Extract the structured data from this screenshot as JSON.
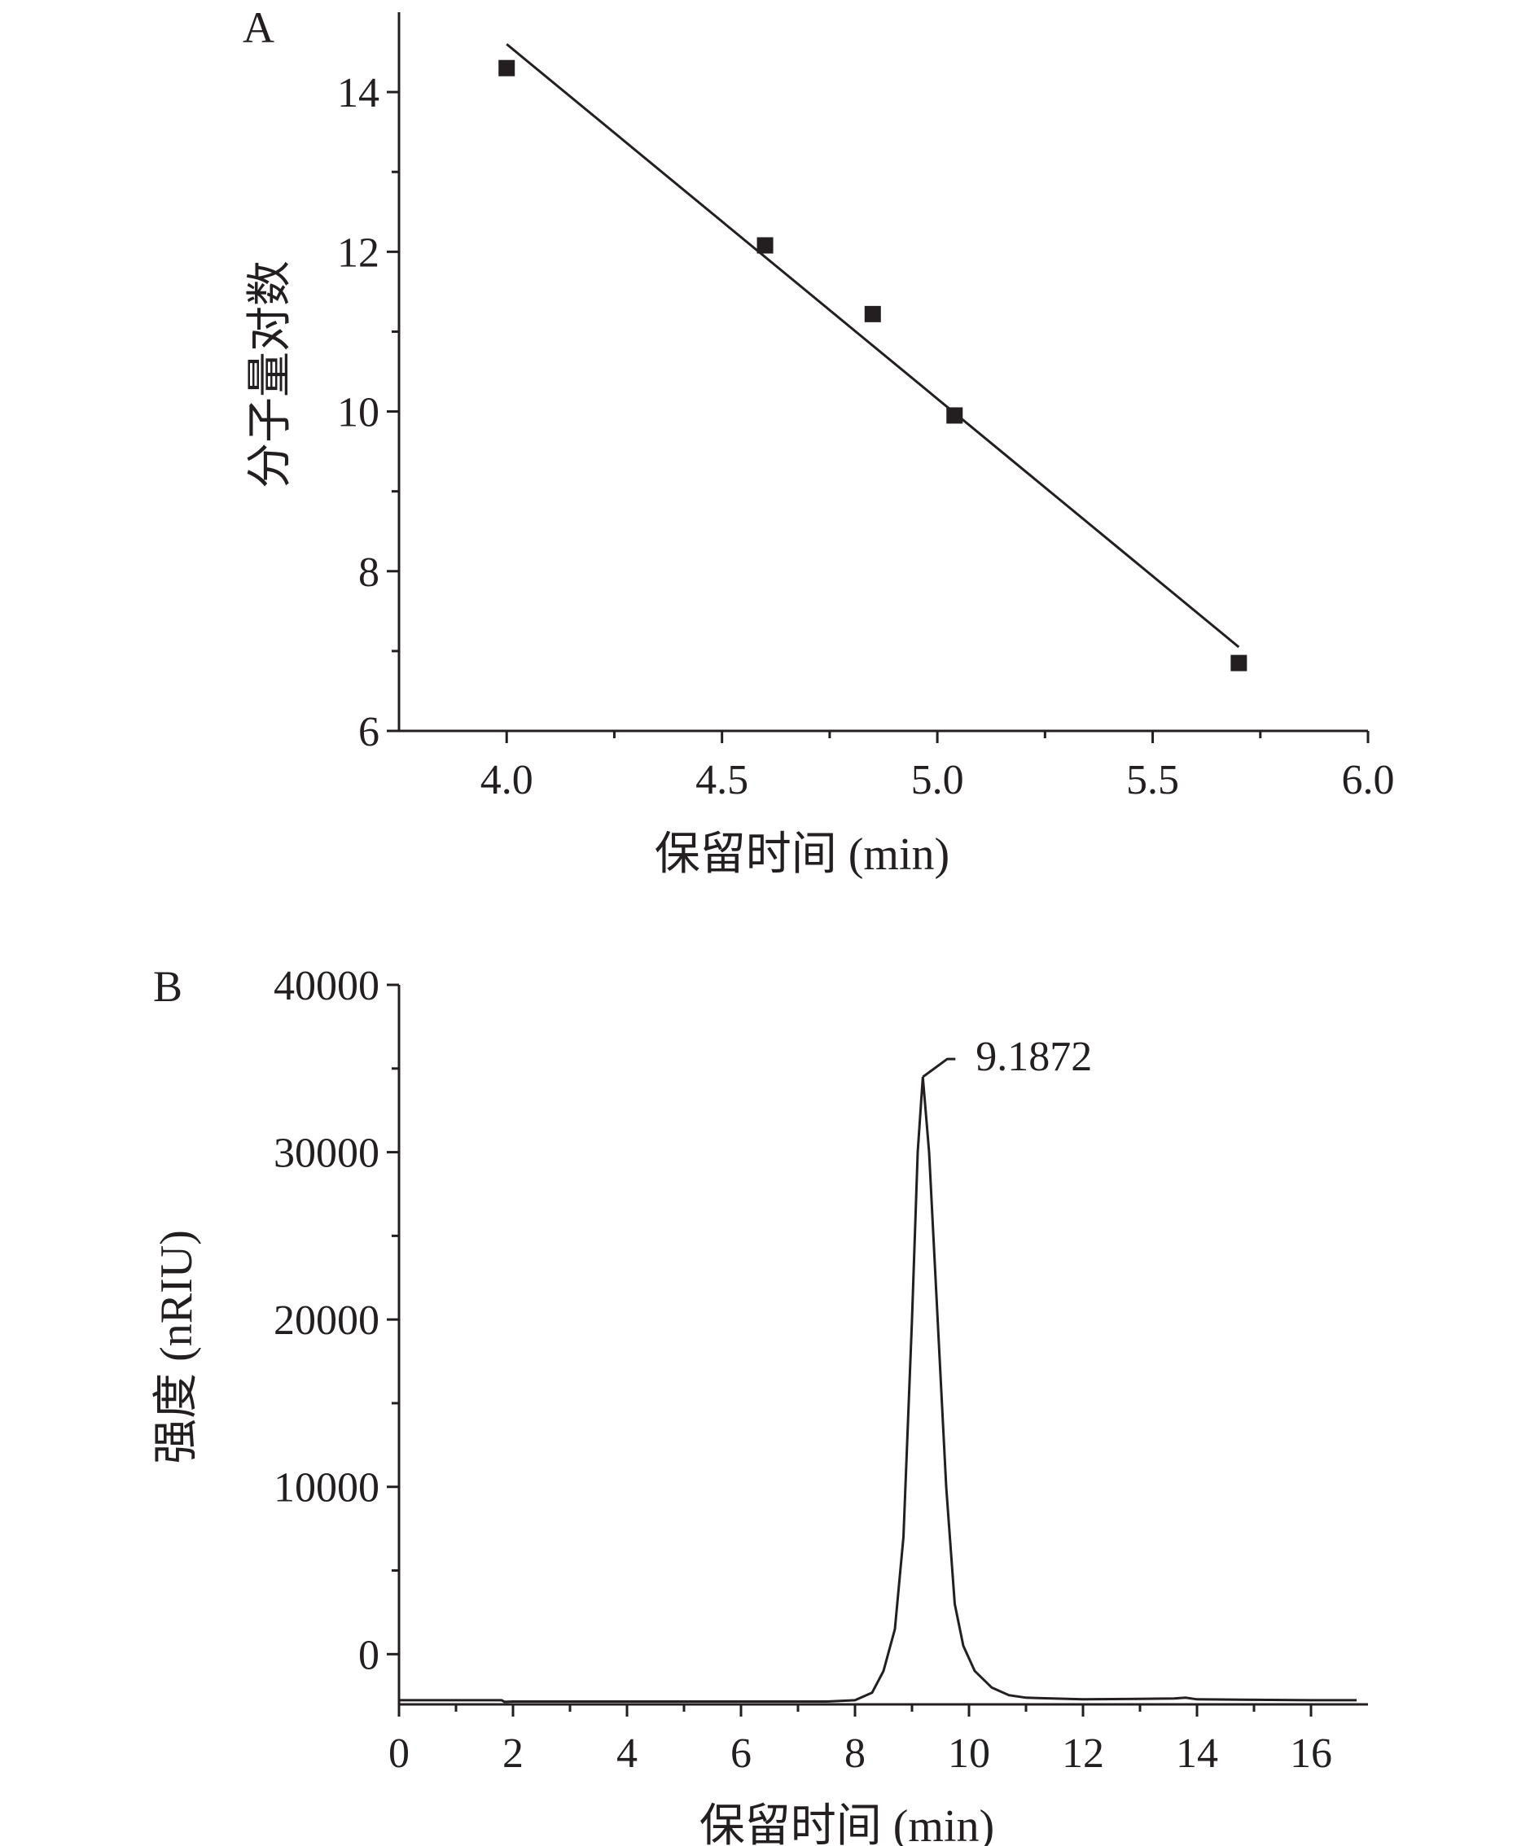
{
  "chart_data": [
    {
      "panel_label": "A",
      "type": "scatter",
      "xlabel": "保留时间 (min)",
      "ylabel": "分子量对数",
      "xlim": [
        3.75,
        6.0
      ],
      "ylim": [
        6,
        15
      ],
      "xticks": [
        4.0,
        4.5,
        5.0,
        5.5,
        6.0
      ],
      "xtick_labels": [
        "4.0",
        "4.5",
        "5.0",
        "5.5",
        "6.0"
      ],
      "yticks": [
        6,
        8,
        10,
        12,
        14
      ],
      "ytick_labels": [
        "6",
        "8",
        "10",
        "12",
        "14"
      ],
      "points": [
        {
          "x": 4.0,
          "y": 14.3
        },
        {
          "x": 4.6,
          "y": 12.08
        },
        {
          "x": 4.85,
          "y": 11.22
        },
        {
          "x": 5.04,
          "y": 9.95
        },
        {
          "x": 5.7,
          "y": 6.85
        }
      ],
      "fit_line": {
        "x": [
          4.0,
          5.7
        ],
        "y": [
          14.6,
          7.05
        ]
      },
      "grid": false
    },
    {
      "panel_label": "B",
      "type": "line",
      "xlabel": "保留时间 (min)",
      "ylabel": "强度 (nRIU)",
      "xlim": [
        0,
        17
      ],
      "ylim": [
        -3000,
        40000
      ],
      "xticks": [
        0,
        2,
        4,
        6,
        8,
        10,
        12,
        14,
        16
      ],
      "xtick_labels": [
        "0",
        "2",
        "4",
        "6",
        "8",
        "10",
        "12",
        "14",
        "16"
      ],
      "yticks": [
        0,
        10000,
        20000,
        30000,
        40000
      ],
      "ytick_labels": [
        "0",
        "10000",
        "20000",
        "30000",
        "40000"
      ],
      "series": [
        {
          "x": [
            0,
            1.8,
            1.85,
            2,
            4,
            6,
            7.5,
            8.0,
            8.3,
            8.5,
            8.7,
            8.85,
            9.0,
            9.1,
            9.19,
            9.3,
            9.45,
            9.6,
            9.75,
            9.9,
            10.1,
            10.4,
            10.7,
            11,
            12,
            13.6,
            13.8,
            14,
            16,
            16.8
          ],
          "y": [
            -2750,
            -2750,
            -2850,
            -2830,
            -2830,
            -2830,
            -2830,
            -2750,
            -2300,
            -1000,
            1500,
            7000,
            20000,
            30000,
            34500,
            30000,
            20000,
            10000,
            3000,
            500,
            -1000,
            -2000,
            -2450,
            -2600,
            -2700,
            -2650,
            -2600,
            -2700,
            -2750,
            -2750
          ]
        }
      ],
      "annotations": [
        {
          "text": "9.1872",
          "x": 9.19,
          "y": 34500
        }
      ],
      "grid": false
    }
  ]
}
